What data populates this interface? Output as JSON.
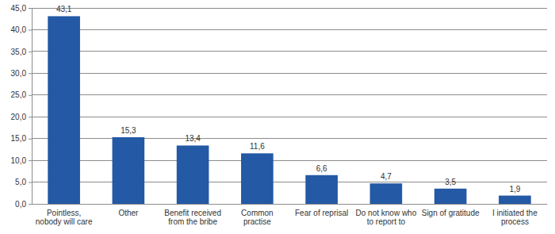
{
  "chart_data": {
    "type": "bar",
    "categories": [
      "Pointless, nobody will care",
      "Other",
      "Benefit received from the bribe",
      "Common practise",
      "Fear of reprisal",
      "Do not know who to report to",
      "Sign of gratitude",
      "I initiated the process"
    ],
    "values": [
      43.1,
      15.3,
      13.4,
      11.6,
      6.6,
      4.7,
      3.5,
      1.9
    ],
    "value_labels": [
      "43,1",
      "15,3",
      "13,4",
      "11,6",
      "6,6",
      "4,7",
      "3,5",
      "1,9"
    ],
    "color": "#2359a5",
    "ylim": [
      0,
      45
    ],
    "yticks": [
      {
        "value": 0,
        "label": "0,0"
      },
      {
        "value": 5,
        "label": "5,0"
      },
      {
        "value": 10,
        "label": "10,0"
      },
      {
        "value": 15,
        "label": "15,0"
      },
      {
        "value": 20,
        "label": "20,0"
      },
      {
        "value": 25,
        "label": "25,0"
      },
      {
        "value": 30,
        "label": "30,0"
      },
      {
        "value": 35,
        "label": "35,0"
      },
      {
        "value": 40,
        "label": "40,0"
      },
      {
        "value": 45,
        "label": "45,0"
      }
    ],
    "grid": true,
    "data_labels": true
  }
}
